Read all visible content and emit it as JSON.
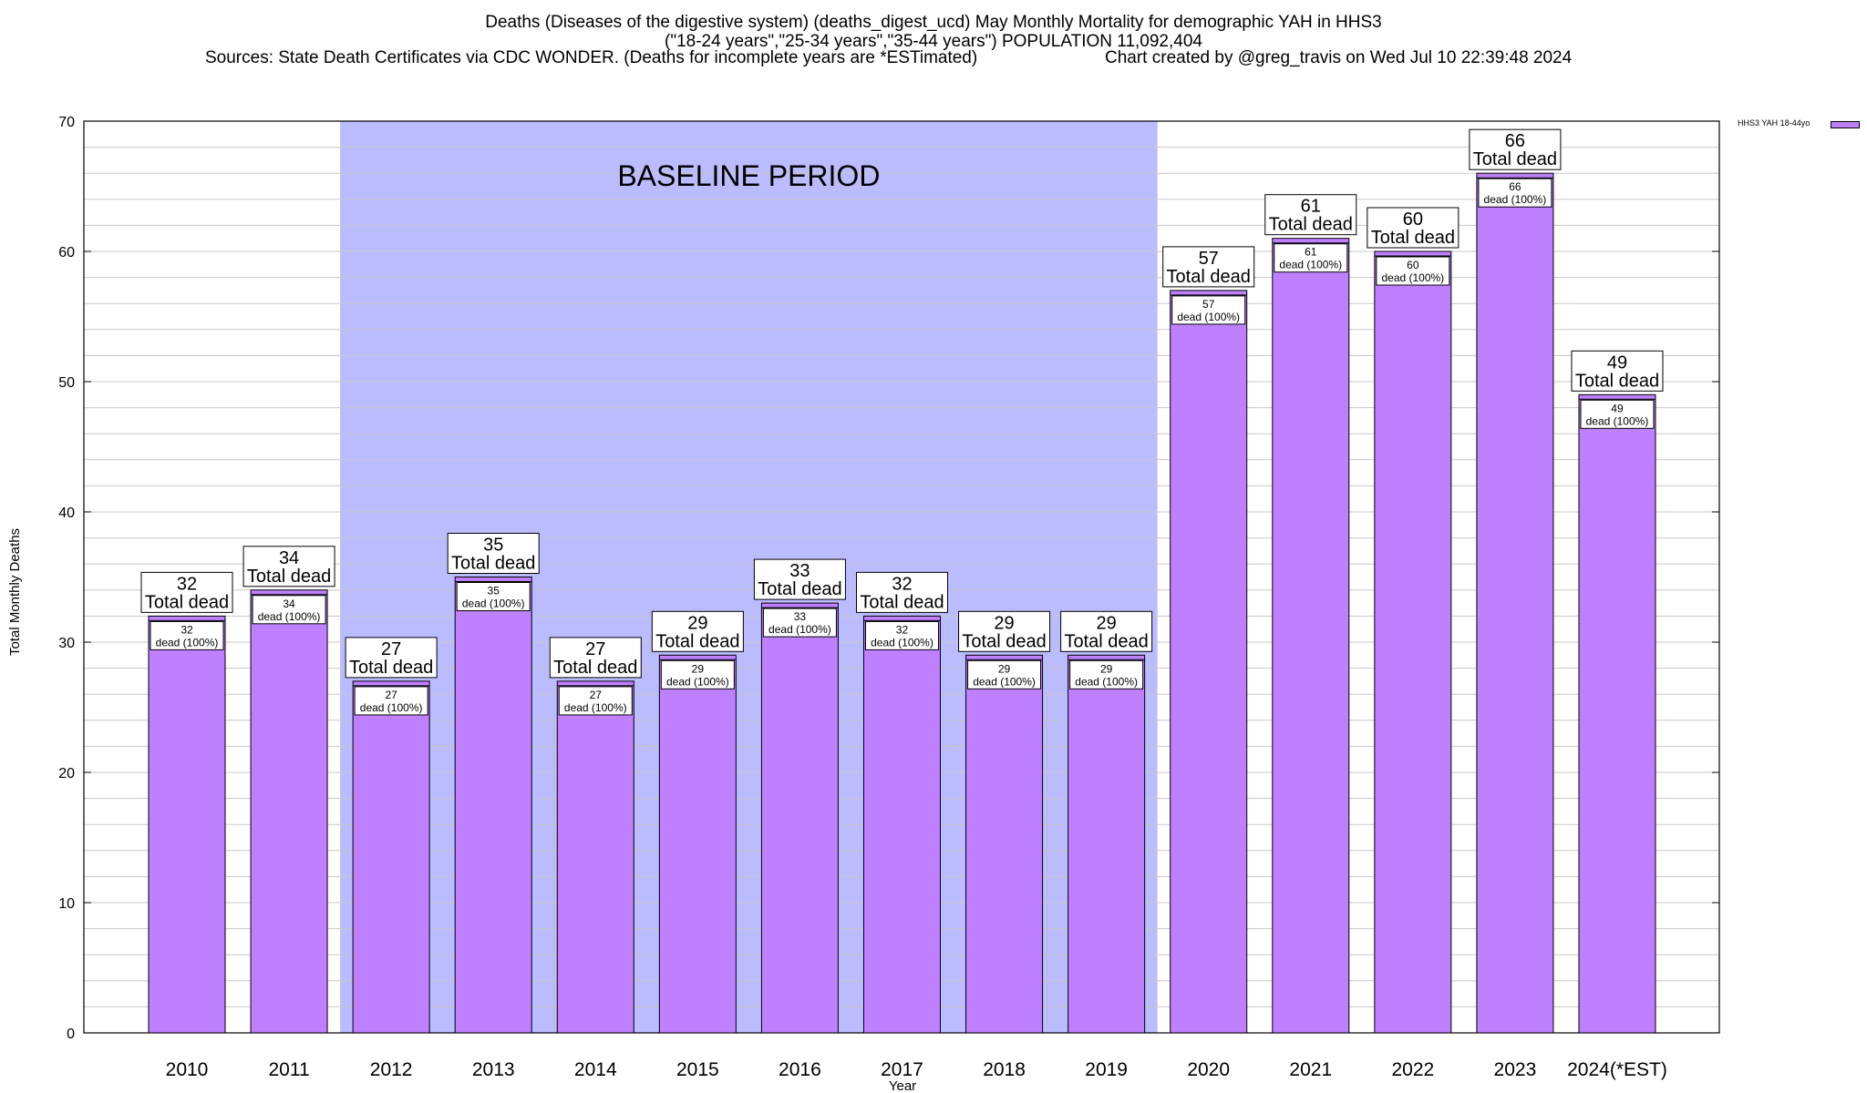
{
  "title": {
    "line1": "Deaths (Diseases of the digestive system) (deaths_digest_ucd) May Monthly Mortality for demographic YAH in HHS3",
    "line2": "(\"18-24 years\",\"25-34 years\",\"35-44 years\") POPULATION 11,092,404",
    "sources": "Sources: State Death Certificates via CDC WONDER. (Deaths for incomplete years are *ESTimated)",
    "credit": "Chart created by @greg_travis on Wed Jul 10 22:39:48 2024"
  },
  "legend": {
    "label": "HHS3 YAH 18-44yo"
  },
  "colors": {
    "bar": "#bf80ff",
    "baseline_band": "#bbbbff",
    "grid": "#c8c8c8"
  },
  "chart_data": {
    "type": "bar",
    "categories": [
      "2010",
      "2011",
      "2012",
      "2013",
      "2014",
      "2015",
      "2016",
      "2017",
      "2018",
      "2019",
      "2020",
      "2021",
      "2022",
      "2023",
      "2024(*EST)"
    ],
    "series": [
      {
        "name": "HHS3 YAH 18-44yo",
        "values": [
          32,
          34,
          27,
          35,
          27,
          29,
          33,
          32,
          29,
          29,
          57,
          61,
          60,
          66,
          49
        ]
      }
    ],
    "xlabel": "Year",
    "ylabel": "Total Monthly Deaths",
    "ylim": [
      0,
      70
    ],
    "yticks": [
      0,
      10,
      20,
      30,
      40,
      50,
      60,
      70
    ],
    "grid": true,
    "legend_position": "top-right",
    "baseline_period": {
      "label": "BASELINE PERIOD",
      "from": "2012",
      "to": "2019"
    },
    "bar_label_total": "Total dead",
    "bar_label_inner": "dead (100%)"
  }
}
